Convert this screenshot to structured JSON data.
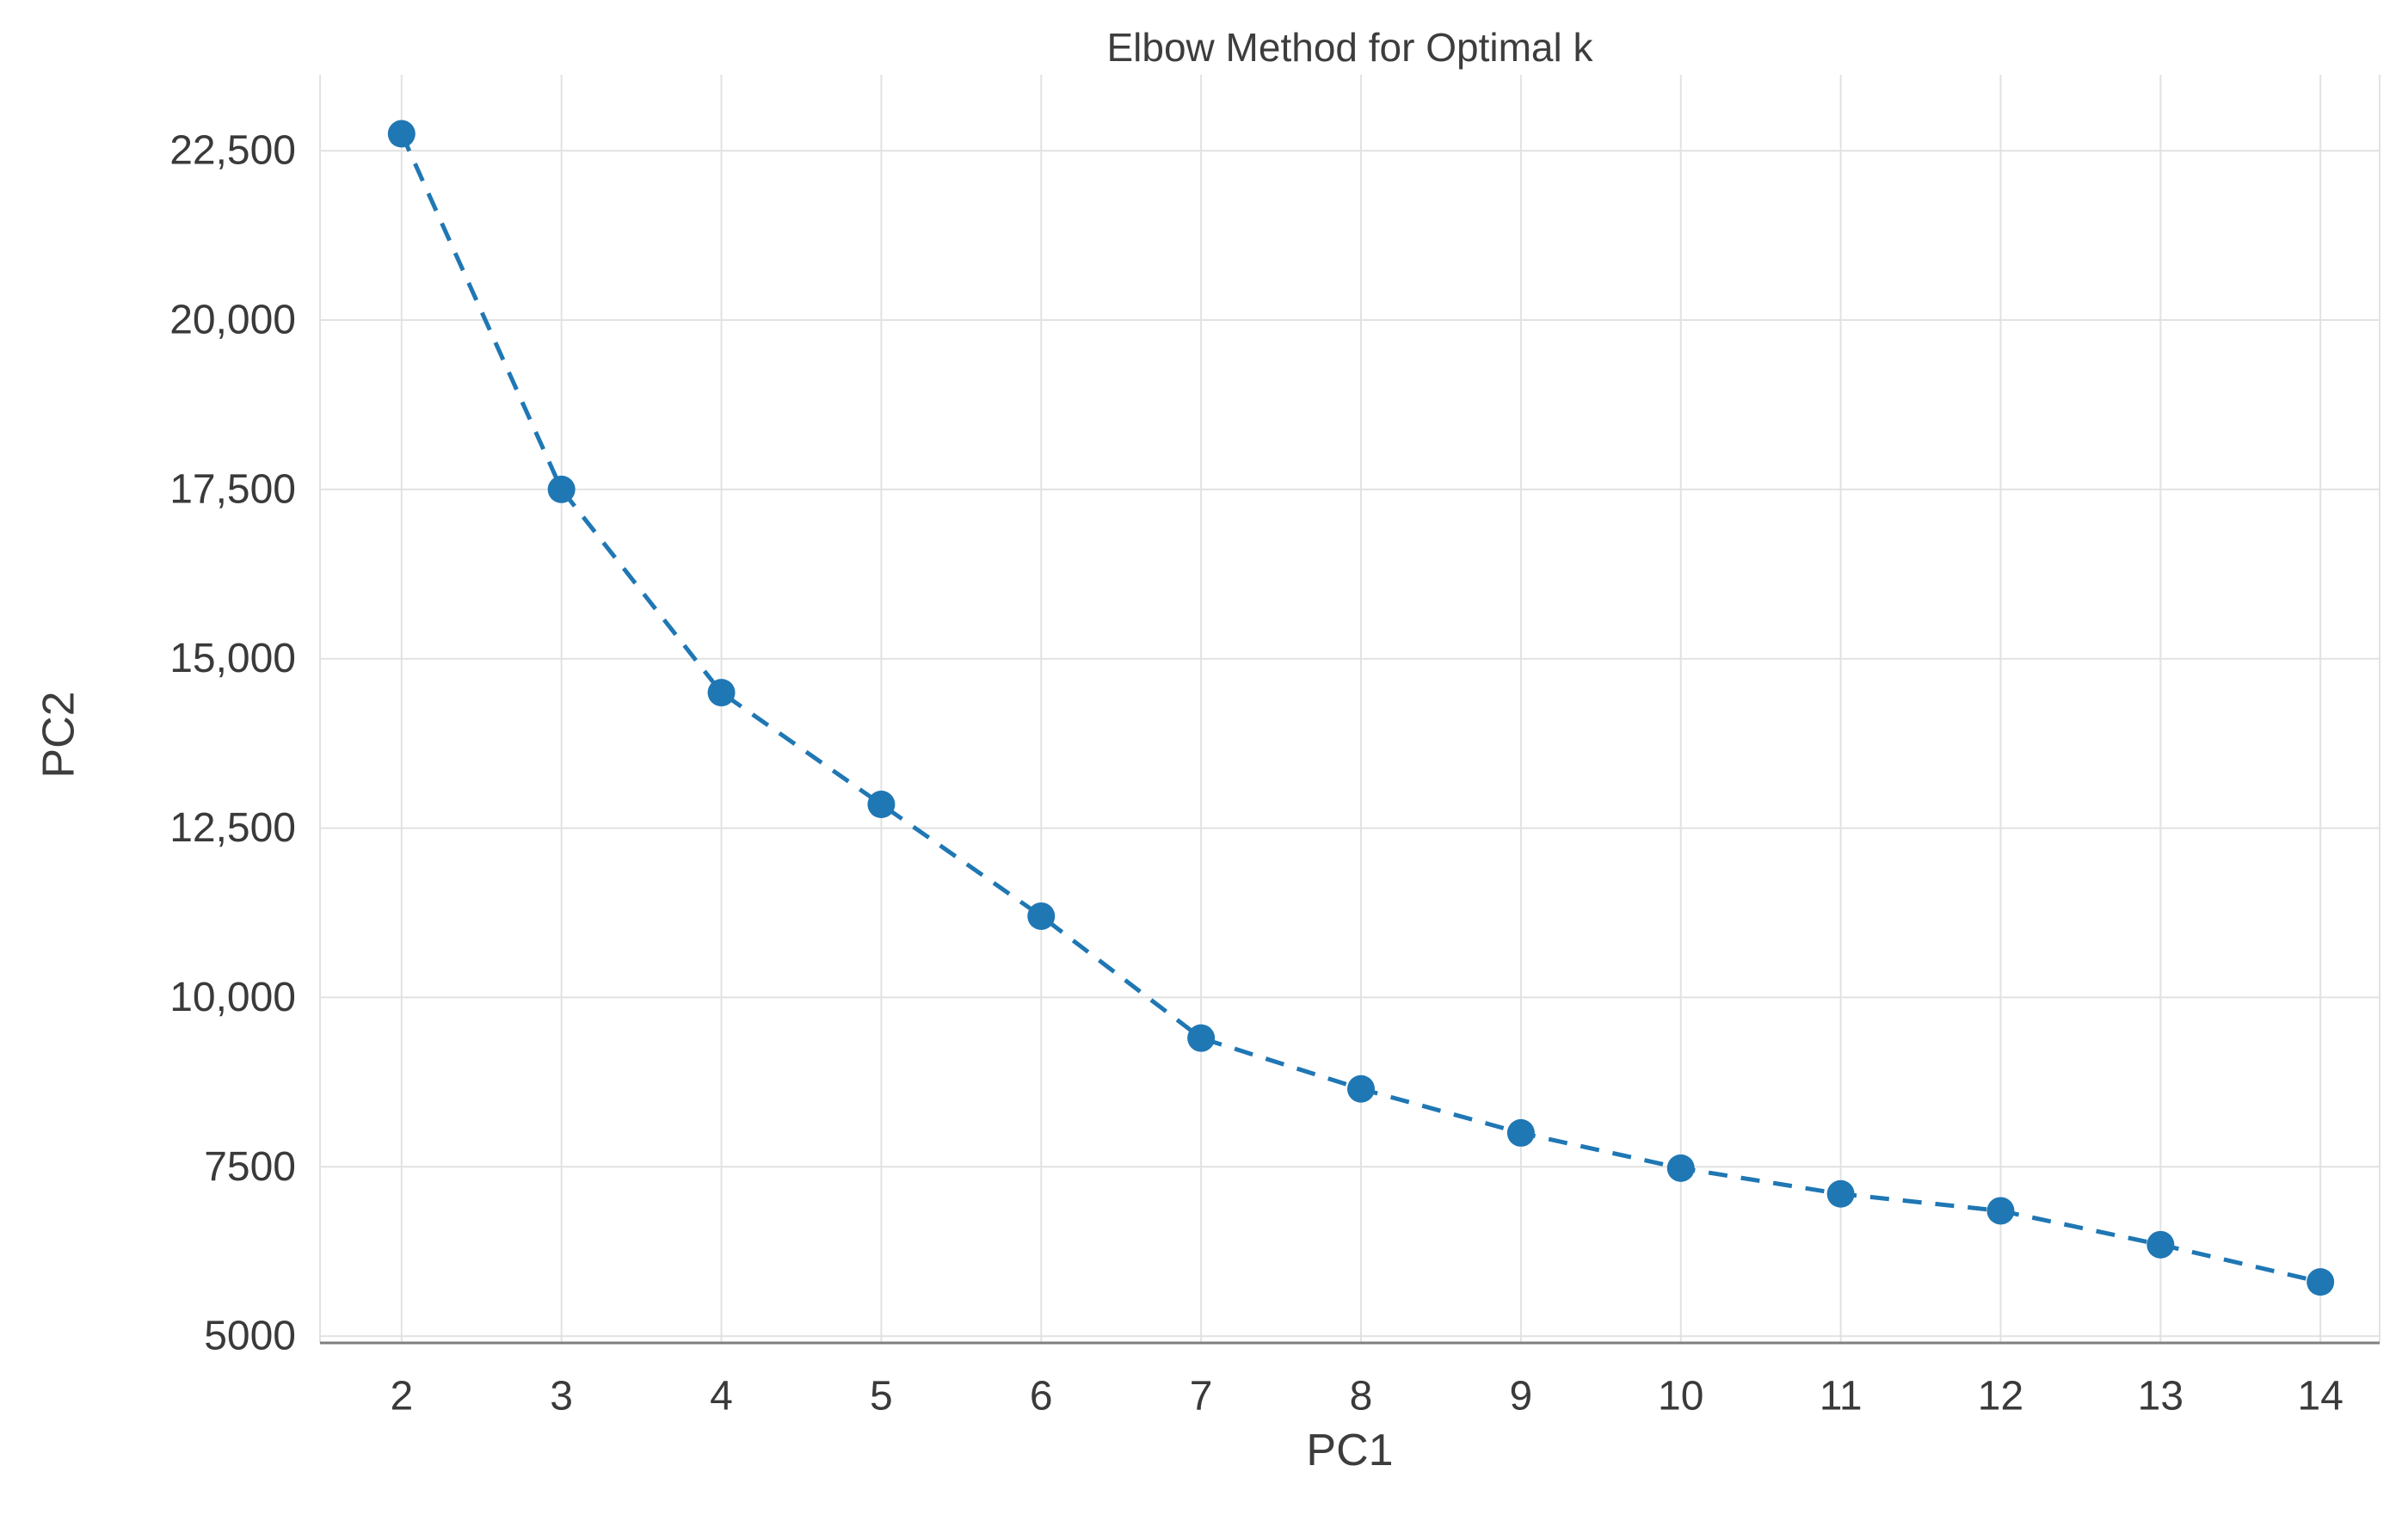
{
  "chart_data": {
    "type": "line",
    "title": "Elbow Method for Optimal k",
    "xlabel": "PC1",
    "ylabel": "PC2",
    "line_style": "dashed",
    "marker": "circle",
    "grid": true,
    "legend": "none",
    "xlim": [
      1.49,
      14.37
    ],
    "ylim": [
      4900,
      23620
    ],
    "x": [
      2,
      3,
      4,
      5,
      6,
      7,
      8,
      9,
      10,
      11,
      12,
      13,
      14
    ],
    "y": [
      22750,
      17500,
      14500,
      12850,
      11200,
      9400,
      8650,
      8000,
      7480,
      7100,
      6850,
      6350,
      5800
    ],
    "xticks": [
      {
        "value": 2,
        "label": "2"
      },
      {
        "value": 3,
        "label": "3"
      },
      {
        "value": 4,
        "label": "4"
      },
      {
        "value": 5,
        "label": "5"
      },
      {
        "value": 6,
        "label": "6"
      },
      {
        "value": 7,
        "label": "7"
      },
      {
        "value": 8,
        "label": "8"
      },
      {
        "value": 9,
        "label": "9"
      },
      {
        "value": 10,
        "label": "10"
      },
      {
        "value": 11,
        "label": "11"
      },
      {
        "value": 12,
        "label": "12"
      },
      {
        "value": 13,
        "label": "13"
      },
      {
        "value": 14,
        "label": "14"
      }
    ],
    "yticks": [
      {
        "value": 5000,
        "label": "5000"
      },
      {
        "value": 7500,
        "label": "7500"
      },
      {
        "value": 10000,
        "label": "10,000"
      },
      {
        "value": 12500,
        "label": "12,500"
      },
      {
        "value": 15000,
        "label": "15,000"
      },
      {
        "value": 17500,
        "label": "17,500"
      },
      {
        "value": 20000,
        "label": "20,000"
      },
      {
        "value": 22500,
        "label": "22,500"
      }
    ],
    "colors": {
      "series": "#1f77b4",
      "grid": "#e2e2e2",
      "axis_line": "#7f7f7f",
      "text": "#3a3a3a",
      "background": "#ffffff"
    }
  }
}
